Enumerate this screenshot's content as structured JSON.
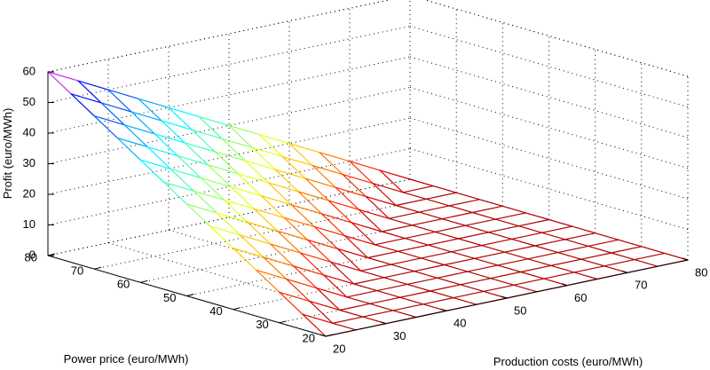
{
  "chart_data": {
    "type": "surface",
    "title": "",
    "function": "profit = max(0, power_price - production_cost)",
    "x_axis": {
      "label": "Production costs (euro/MWh)",
      "range": [
        20,
        80
      ],
      "ticks": [
        20,
        30,
        40,
        50,
        60,
        70,
        80
      ],
      "tick_labels": [
        "20",
        "30",
        "40",
        "50",
        "60",
        "70",
        "80"
      ]
    },
    "y_axis": {
      "label": "Power price (euro/MWh)",
      "range": [
        20,
        80
      ],
      "ticks": [
        20,
        30,
        40,
        50,
        60,
        70,
        80
      ],
      "tick_labels": [
        "20",
        "30",
        "40",
        "50",
        "60",
        "70",
        "80"
      ]
    },
    "z_axis": {
      "label": "Profit (euro/MWh)",
      "range": [
        0,
        60
      ],
      "ticks": [
        0,
        10,
        20,
        30,
        40,
        50,
        60
      ],
      "tick_labels": [
        "0",
        "10",
        "20",
        "30",
        "40",
        "50",
        "60"
      ]
    },
    "grid": {
      "x": [
        20,
        25,
        30,
        35,
        40,
        45,
        50,
        55,
        60,
        65,
        70,
        75,
        80
      ],
      "y": [
        20,
        25,
        30,
        35,
        40,
        45,
        50,
        55,
        60,
        65,
        70,
        75,
        80
      ]
    },
    "colormap": "jet",
    "box_grid": true,
    "style": "mesh"
  }
}
